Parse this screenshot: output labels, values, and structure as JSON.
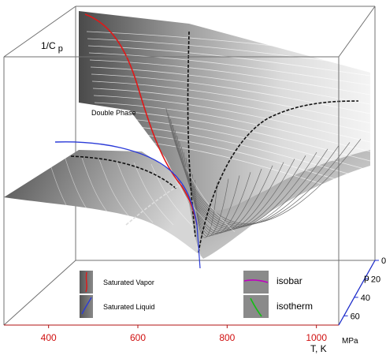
{
  "chart_data": {
    "type": "surface3d",
    "zlabel_main": "1/C",
    "zlabel_sub": "p",
    "x_axis": {
      "label": "T, K",
      "ticks": [
        "400",
        "600",
        "800",
        "1000"
      ],
      "tick_values": [
        400,
        600,
        800,
        1000
      ],
      "range": [
        300,
        1050
      ],
      "tick_color": "#d01010"
    },
    "p_axis": {
      "label": "p",
      "unit": "MPa",
      "ticks": [
        "0",
        "20",
        "40",
        "60"
      ],
      "tick_values": [
        0,
        20,
        40,
        60
      ],
      "range": [
        0,
        70
      ]
    },
    "region_label": "Double Phase",
    "legend": [
      {
        "label": "Saturated Vapor",
        "swatch": "red-curve"
      },
      {
        "label": "Saturated Liquid",
        "swatch": "blue-curve"
      },
      {
        "label": "isobar",
        "swatch": "magenta-curve"
      },
      {
        "label": "isotherm",
        "swatch": "green-curve"
      }
    ],
    "colors": {
      "saturated_vapor": "#e01818",
      "saturated_liquid": "#2a3ad8",
      "isobar": "#c000c0",
      "isotherm": "#10c010",
      "box": "#6a6a6a"
    },
    "grid": false,
    "legend_placement": "bottom"
  }
}
